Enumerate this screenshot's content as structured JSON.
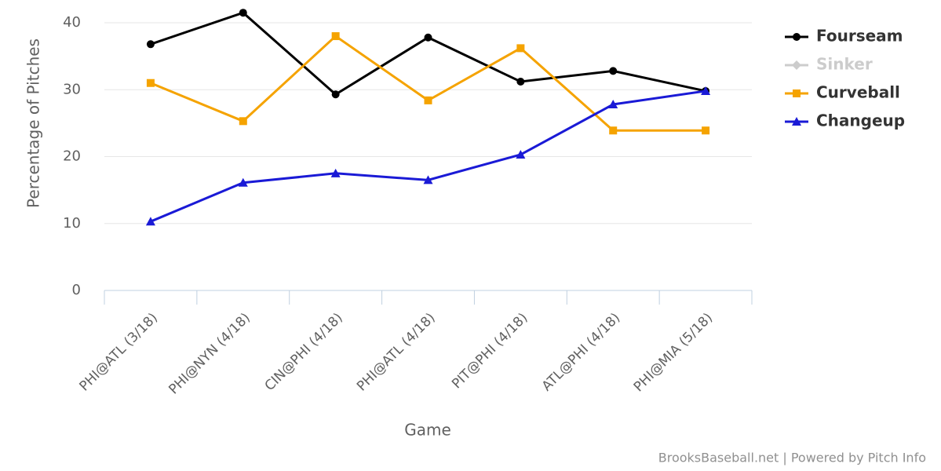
{
  "chart_data": {
    "type": "line",
    "x_label": "Game",
    "y_label": "Percentage of Pitches",
    "credits": "BrooksBaseball.net | Powered by Pitch Info",
    "categories": [
      "PHI@ATL (3/18)",
      "PHI@NYN (4/18)",
      "CIN@PHI (4/18)",
      "PHI@ATL (4/18)",
      "PIT@PHI (4/18)",
      "ATL@PHI (4/18)",
      "PHI@MIA (5/18)"
    ],
    "series": [
      {
        "name": "Fourseam",
        "color": "#000000",
        "marker": "circle",
        "visible": true,
        "values": [
          36.8,
          41.5,
          29.3,
          37.8,
          31.2,
          32.8,
          29.8
        ]
      },
      {
        "name": "Sinker",
        "color": "#cccccc",
        "marker": "diamond",
        "visible": false,
        "values": [
          null,
          null,
          null,
          null,
          null,
          null,
          null
        ]
      },
      {
        "name": "Curveball",
        "color": "#f5a300",
        "marker": "square",
        "visible": true,
        "values": [
          31.0,
          25.3,
          38.0,
          28.4,
          36.2,
          23.9,
          23.9
        ]
      },
      {
        "name": "Changeup",
        "color": "#1a1ad6",
        "marker": "triangle",
        "visible": true,
        "values": [
          10.3,
          16.1,
          17.5,
          16.5,
          20.3,
          27.8,
          29.8
        ]
      }
    ],
    "ylim": [
      0,
      40
    ],
    "yticks": [
      0,
      10,
      20,
      30,
      40
    ],
    "grid": true,
    "legend": "right"
  }
}
